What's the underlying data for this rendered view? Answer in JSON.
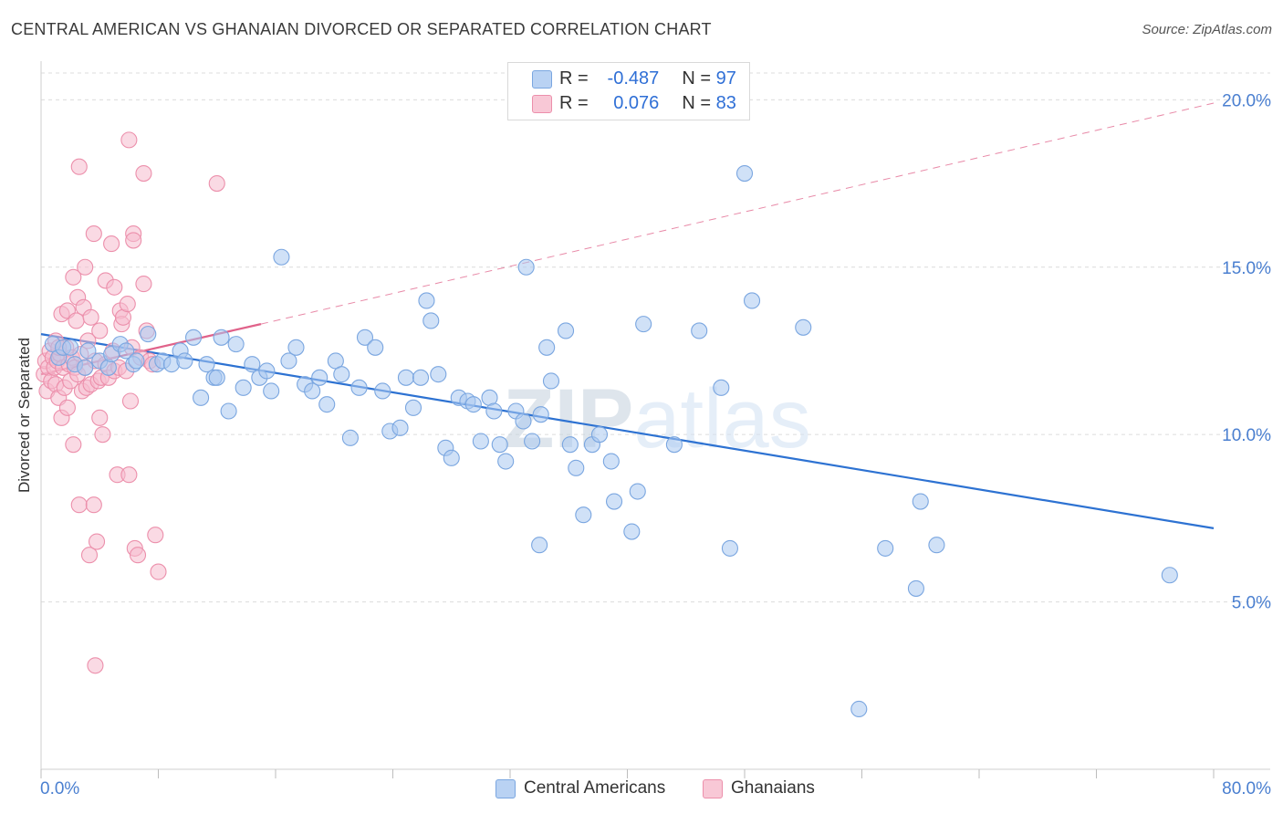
{
  "title": "CENTRAL AMERICAN VS GHANAIAN DIVORCED OR SEPARATED CORRELATION CHART",
  "source": "Source: ZipAtlas.com",
  "watermark": "ZIPatlas",
  "legend_top": {
    "rows": [
      {
        "r_label": "R =",
        "r_value": "-0.487",
        "n_label": "N =",
        "n_value": "97"
      },
      {
        "r_label": "R =",
        "r_value": "0.076",
        "n_label": "N =",
        "n_value": "83"
      }
    ]
  },
  "legend_bottom": [
    "Central Americans",
    "Ghanaians"
  ],
  "colors": {
    "blue_fill": "#aac8f0",
    "blue_stroke": "#7aa6e0",
    "blue_line": "#2d72d2",
    "pink_fill": "#f6bccd",
    "pink_stroke": "#ec8fab",
    "pink_line": "#e0628a",
    "grid": "#dcdcdc",
    "tick_text": "#4a7fd0"
  },
  "chart_data": {
    "type": "scatter",
    "title": "CENTRAL AMERICAN VS GHANAIAN DIVORCED OR SEPARATED CORRELATION CHART",
    "xlabel": "",
    "ylabel": "Divorced or Separated",
    "xlim": [
      0,
      80
    ],
    "ylim": [
      0,
      20.8
    ],
    "x_tick_labels": [
      {
        "value": 0,
        "label": "0.0%"
      },
      {
        "value": 80,
        "label": "80.0%"
      }
    ],
    "y_tick_labels": [
      {
        "value": 5,
        "label": "5.0%"
      },
      {
        "value": 10,
        "label": "10.0%"
      },
      {
        "value": 15,
        "label": "15.0%"
      },
      {
        "value": 20,
        "label": "20.0%"
      }
    ],
    "grid": true,
    "legend_position": "bottom",
    "series": [
      {
        "name": "Central Americans",
        "color": "#aac8f0",
        "trend": {
          "x": [
            0,
            80
          ],
          "y": [
            13.0,
            7.2
          ]
        },
        "points": [
          [
            0.8,
            12.7
          ],
          [
            1.2,
            12.3
          ],
          [
            1.5,
            12.6
          ],
          [
            2.0,
            12.6
          ],
          [
            2.3,
            12.1
          ],
          [
            3.0,
            12.0
          ],
          [
            3.2,
            12.5
          ],
          [
            4.0,
            12.2
          ],
          [
            4.6,
            12.0
          ],
          [
            4.8,
            12.4
          ],
          [
            5.4,
            12.7
          ],
          [
            5.8,
            12.5
          ],
          [
            6.3,
            12.1
          ],
          [
            6.5,
            12.2
          ],
          [
            7.3,
            13.0
          ],
          [
            7.9,
            12.1
          ],
          [
            8.3,
            12.2
          ],
          [
            8.9,
            12.1
          ],
          [
            9.5,
            12.5
          ],
          [
            9.8,
            12.2
          ],
          [
            10.4,
            12.9
          ],
          [
            10.9,
            11.1
          ],
          [
            11.3,
            12.1
          ],
          [
            11.8,
            11.7
          ],
          [
            12.3,
            12.9
          ],
          [
            12.8,
            10.7
          ],
          [
            13.3,
            12.7
          ],
          [
            13.8,
            11.4
          ],
          [
            14.4,
            12.1
          ],
          [
            14.9,
            11.7
          ],
          [
            15.4,
            11.9
          ],
          [
            15.7,
            11.3
          ],
          [
            16.4,
            15.3
          ],
          [
            16.9,
            12.2
          ],
          [
            17.4,
            12.6
          ],
          [
            18.0,
            11.5
          ],
          [
            18.5,
            11.3
          ],
          [
            19.0,
            11.7
          ],
          [
            19.5,
            10.9
          ],
          [
            20.1,
            12.2
          ],
          [
            20.5,
            11.8
          ],
          [
            21.1,
            9.9
          ],
          [
            21.7,
            11.4
          ],
          [
            22.1,
            12.9
          ],
          [
            22.8,
            12.6
          ],
          [
            23.3,
            11.3
          ],
          [
            23.8,
            10.1
          ],
          [
            24.5,
            10.2
          ],
          [
            24.9,
            11.7
          ],
          [
            25.4,
            10.8
          ],
          [
            25.9,
            11.7
          ],
          [
            26.3,
            14.0
          ],
          [
            26.6,
            13.4
          ],
          [
            27.1,
            11.8
          ],
          [
            27.6,
            9.6
          ],
          [
            28.0,
            9.3
          ],
          [
            28.5,
            11.1
          ],
          [
            29.1,
            11.0
          ],
          [
            29.5,
            10.9
          ],
          [
            30.0,
            9.8
          ],
          [
            30.6,
            11.1
          ],
          [
            30.9,
            10.7
          ],
          [
            31.3,
            9.7
          ],
          [
            31.7,
            9.2
          ],
          [
            32.4,
            10.7
          ],
          [
            32.9,
            10.4
          ],
          [
            33.1,
            15.0
          ],
          [
            33.5,
            9.8
          ],
          [
            34.1,
            10.6
          ],
          [
            34.5,
            12.6
          ],
          [
            34.8,
            11.6
          ],
          [
            35.8,
            13.1
          ],
          [
            36.1,
            9.7
          ],
          [
            36.5,
            9.0
          ],
          [
            37.0,
            7.6
          ],
          [
            37.6,
            9.7
          ],
          [
            38.1,
            10.0
          ],
          [
            38.9,
            9.2
          ],
          [
            39.1,
            8.0
          ],
          [
            40.3,
            7.1
          ],
          [
            40.7,
            8.3
          ],
          [
            41.1,
            13.3
          ],
          [
            43.2,
            9.7
          ],
          [
            44.9,
            13.1
          ],
          [
            46.4,
            11.4
          ],
          [
            47.0,
            6.6
          ],
          [
            48.0,
            17.8
          ],
          [
            48.5,
            14.0
          ],
          [
            52.0,
            13.2
          ],
          [
            55.8,
            1.8
          ],
          [
            57.6,
            6.6
          ],
          [
            59.7,
            5.4
          ],
          [
            60.0,
            8.0
          ],
          [
            61.1,
            6.7
          ],
          [
            77.0,
            5.8
          ],
          [
            34.0,
            6.7
          ],
          [
            12.0,
            11.7
          ]
        ]
      },
      {
        "name": "Ghanaians",
        "color": "#f6bccd",
        "trend": {
          "x": [
            0,
            15
          ],
          "y": [
            11.8,
            13.3
          ]
        },
        "trend_extended": {
          "x": [
            15,
            80
          ],
          "y": [
            13.3,
            19.9
          ]
        },
        "points": [
          [
            0.2,
            11.8
          ],
          [
            0.3,
            12.2
          ],
          [
            0.4,
            11.3
          ],
          [
            0.5,
            12.0
          ],
          [
            0.6,
            12.5
          ],
          [
            0.7,
            11.6
          ],
          [
            0.8,
            12.3
          ],
          [
            0.9,
            12.0
          ],
          [
            1.0,
            11.5
          ],
          [
            1.0,
            12.8
          ],
          [
            1.1,
            12.2
          ],
          [
            1.2,
            11.1
          ],
          [
            1.3,
            12.4
          ],
          [
            1.4,
            10.5
          ],
          [
            1.4,
            13.6
          ],
          [
            1.5,
            12.0
          ],
          [
            1.6,
            11.4
          ],
          [
            1.7,
            12.6
          ],
          [
            1.8,
            10.8
          ],
          [
            1.8,
            13.7
          ],
          [
            1.9,
            12.1
          ],
          [
            2.0,
            11.6
          ],
          [
            2.1,
            12.3
          ],
          [
            2.2,
            14.7
          ],
          [
            2.2,
            9.7
          ],
          [
            2.3,
            12.0
          ],
          [
            2.4,
            13.4
          ],
          [
            2.5,
            11.8
          ],
          [
            2.5,
            14.1
          ],
          [
            2.6,
            18.0
          ],
          [
            2.6,
            7.9
          ],
          [
            2.7,
            12.4
          ],
          [
            2.8,
            11.3
          ],
          [
            2.9,
            13.8
          ],
          [
            3.0,
            12.0
          ],
          [
            3.0,
            15.0
          ],
          [
            3.1,
            11.4
          ],
          [
            3.2,
            12.8
          ],
          [
            3.3,
            6.4
          ],
          [
            3.4,
            13.5
          ],
          [
            3.4,
            11.5
          ],
          [
            3.6,
            16.0
          ],
          [
            3.6,
            7.9
          ],
          [
            3.7,
            12.2
          ],
          [
            3.7,
            3.1
          ],
          [
            3.8,
            6.8
          ],
          [
            3.9,
            11.6
          ],
          [
            4.0,
            13.1
          ],
          [
            4.0,
            10.5
          ],
          [
            4.1,
            11.7
          ],
          [
            4.2,
            10.0
          ],
          [
            4.4,
            14.6
          ],
          [
            4.4,
            12.1
          ],
          [
            4.6,
            11.7
          ],
          [
            4.8,
            15.7
          ],
          [
            4.9,
            12.5
          ],
          [
            5.0,
            14.4
          ],
          [
            5.0,
            11.9
          ],
          [
            5.2,
            8.8
          ],
          [
            5.3,
            12.0
          ],
          [
            5.4,
            13.7
          ],
          [
            5.5,
            13.3
          ],
          [
            5.6,
            13.5
          ],
          [
            5.8,
            11.9
          ],
          [
            5.9,
            13.9
          ],
          [
            6.0,
            18.8
          ],
          [
            6.0,
            8.8
          ],
          [
            6.1,
            11.0
          ],
          [
            6.2,
            12.6
          ],
          [
            6.3,
            16.0
          ],
          [
            6.3,
            15.8
          ],
          [
            6.4,
            6.6
          ],
          [
            6.6,
            6.4
          ],
          [
            6.8,
            12.3
          ],
          [
            7.0,
            14.5
          ],
          [
            7.0,
            17.8
          ],
          [
            7.2,
            13.1
          ],
          [
            7.4,
            12.2
          ],
          [
            7.6,
            12.1
          ],
          [
            7.8,
            7.0
          ],
          [
            8.0,
            5.9
          ],
          [
            12.0,
            17.5
          ],
          [
            1.2,
            12.6
          ]
        ]
      }
    ]
  }
}
